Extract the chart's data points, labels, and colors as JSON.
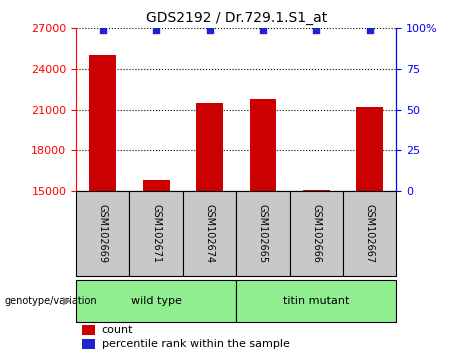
{
  "title": "GDS2192 / Dr.729.1.S1_at",
  "samples": [
    "GSM102669",
    "GSM102671",
    "GSM102674",
    "GSM102665",
    "GSM102666",
    "GSM102667"
  ],
  "counts": [
    25000,
    15800,
    21500,
    21800,
    15100,
    21200
  ],
  "percentile_ranks": [
    99,
    99,
    99,
    99,
    99,
    99
  ],
  "ylim_left": [
    15000,
    27000
  ],
  "ylim_right": [
    0,
    100
  ],
  "yticks_left": [
    15000,
    18000,
    21000,
    24000,
    27000
  ],
  "yticks_right": [
    0,
    25,
    50,
    75,
    100
  ],
  "groups": [
    {
      "label": "wild type",
      "indices": [
        0,
        1,
        2
      ]
    },
    {
      "label": "titin mutant",
      "indices": [
        3,
        4,
        5
      ]
    }
  ],
  "bar_color": "#cc0000",
  "dot_color": "#2222cc",
  "bar_width": 0.5,
  "sample_bg_color": "#c8c8c8",
  "group_color": "#90ee90",
  "legend_count_label": "count",
  "legend_pct_label": "percentile rank within the sample",
  "genotype_label": "genotype/variation"
}
